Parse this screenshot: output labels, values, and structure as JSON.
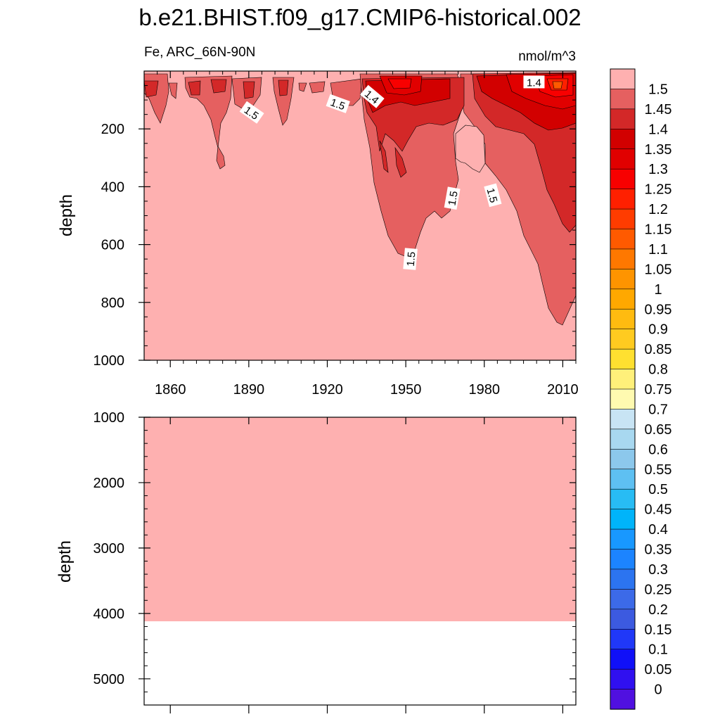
{
  "chart_data": [
    {
      "type": "heatmap",
      "title": "b.e21.BHIST.f09_g17.CMIP6-historical.002",
      "left_label": "Fe, ARC_66N-90N",
      "units_label": "nmol/m^3",
      "ylabel": "depth",
      "ylim": [
        1000,
        0
      ],
      "ytick_labels": [
        "200",
        "400",
        "600",
        "800",
        "1000"
      ],
      "yticks": [
        200,
        400,
        600,
        800,
        1000
      ],
      "xlim": [
        1850,
        2015
      ],
      "xtick_labels": [
        "1860",
        "1890",
        "1920",
        "1950",
        "1980",
        "2010"
      ],
      "xticks": [
        1860,
        1890,
        1920,
        1950,
        1980,
        2010
      ],
      "background_value": ">1.5",
      "contour_labels": [
        {
          "text": "1.5",
          "year": 1891,
          "depth": 145
        },
        {
          "text": "1.5",
          "year": 1924,
          "depth": 115
        },
        {
          "text": "1.4",
          "year": 1937,
          "depth": 90
        },
        {
          "text": "1.4",
          "year": 1999,
          "depth": 40
        },
        {
          "text": "1.5",
          "year": 1968,
          "depth": 440
        },
        {
          "text": "1.5",
          "year": 1983,
          "depth": 430
        },
        {
          "text": "1.5",
          "year": 1952,
          "depth": 650
        }
      ]
    },
    {
      "type": "heatmap",
      "ylabel": "depth",
      "ylim": [
        1000,
        5400
      ],
      "ytick_labels": [
        "1000",
        "2000",
        "3000",
        "4000",
        "5000"
      ],
      "yticks": [
        1000,
        2000,
        3000,
        4000,
        5000
      ],
      "xlim": [
        1850,
        2015
      ],
      "fill_value": ">1.5",
      "data_bottom_depth": 4120
    }
  ],
  "colorbar": {
    "labels": [
      "1.5",
      "1.45",
      "1.4",
      "1.35",
      "1.3",
      "1.25",
      "1.2",
      "1.15",
      "1.1",
      "1.05",
      "1",
      "0.95",
      "0.9",
      "0.85",
      "0.8",
      "0.75",
      "0.7",
      "0.65",
      "0.6",
      "0.55",
      "0.5",
      "0.45",
      "0.4",
      "0.35",
      "0.3",
      "0.25",
      "0.2",
      "0.15",
      "0.1",
      "0.05",
      "0"
    ],
    "colors": [
      "#feb0b0",
      "#e56060",
      "#d32828",
      "#d20000",
      "#e10000",
      "#f80000",
      "#ff2000",
      "#ff3c00",
      "#ff5a00",
      "#fe7800",
      "#fe9400",
      "#ffa800",
      "#ffbb10",
      "#ffcb20",
      "#ffe030",
      "#fff07a",
      "#fffab0",
      "#c8e4f4",
      "#a8d8f0",
      "#8cc8ec",
      "#5ec0f2",
      "#28bcf4",
      "#00b4fa",
      "#1898ff",
      "#1c84ff",
      "#2c74f0",
      "#3c6ae8",
      "#3c5ae0",
      "#2038f8",
      "#1010f8",
      "#3010f0",
      "#5010e0"
    ]
  }
}
